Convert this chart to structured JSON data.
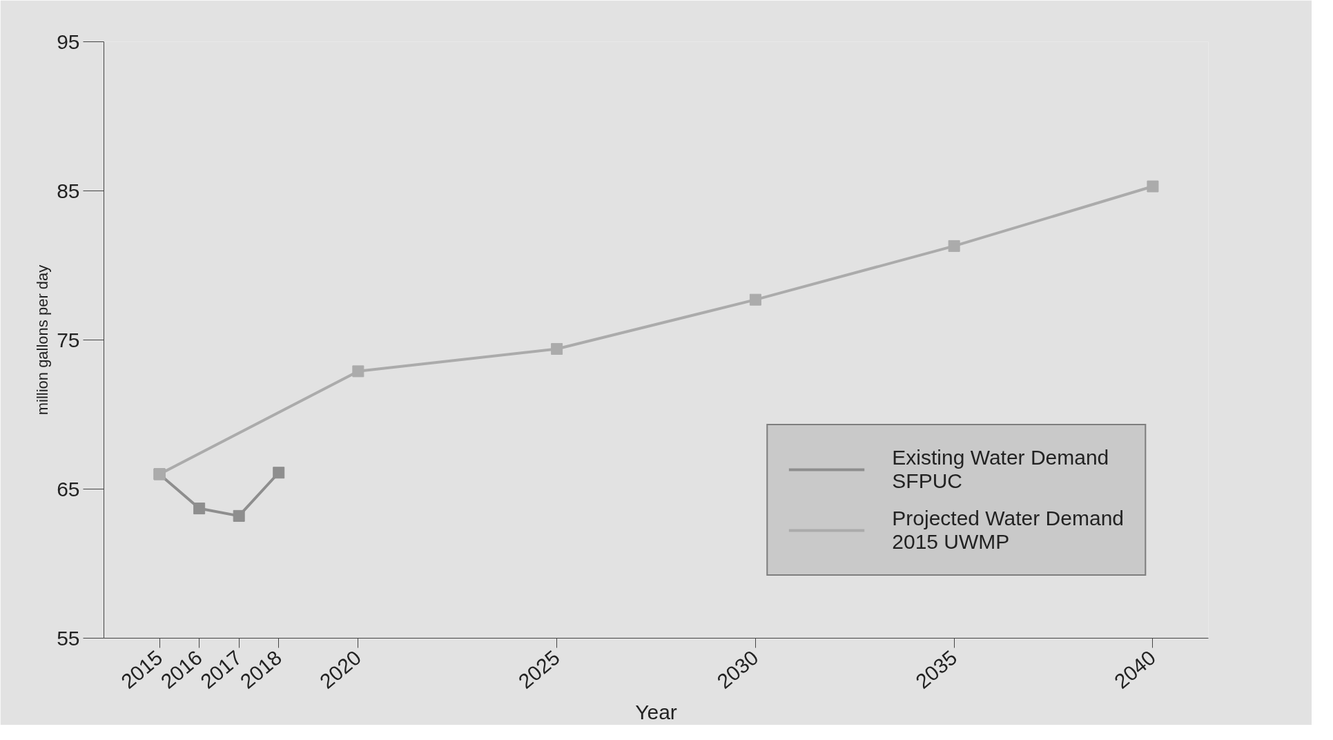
{
  "chart_data": {
    "type": "line",
    "xlabel": "Year",
    "ylabel": "million gallons per day",
    "xlim": [
      2013.6,
      2041.4
    ],
    "xticks": [
      2015,
      2016,
      2017,
      2018,
      2020,
      2025,
      2030,
      2035,
      2040
    ],
    "ylim": [
      55,
      95
    ],
    "yticks": [
      55,
      65,
      75,
      85,
      95
    ],
    "series": [
      {
        "name": "Existing Water Demand\nSFPUC",
        "color": "#8e8e8e",
        "x": [
          2015,
          2016,
          2017,
          2018
        ],
        "values": [
          66.0,
          63.7,
          63.2,
          66.1
        ]
      },
      {
        "name": "Projected Water Demand\n2015 UWMP",
        "color": "#ababab",
        "x": [
          2015,
          2020,
          2025,
          2030,
          2035,
          2040
        ],
        "values": [
          66.0,
          72.9,
          74.4,
          77.7,
          81.3,
          85.3
        ]
      }
    ],
    "marker": "square",
    "legend": "bottom right"
  }
}
